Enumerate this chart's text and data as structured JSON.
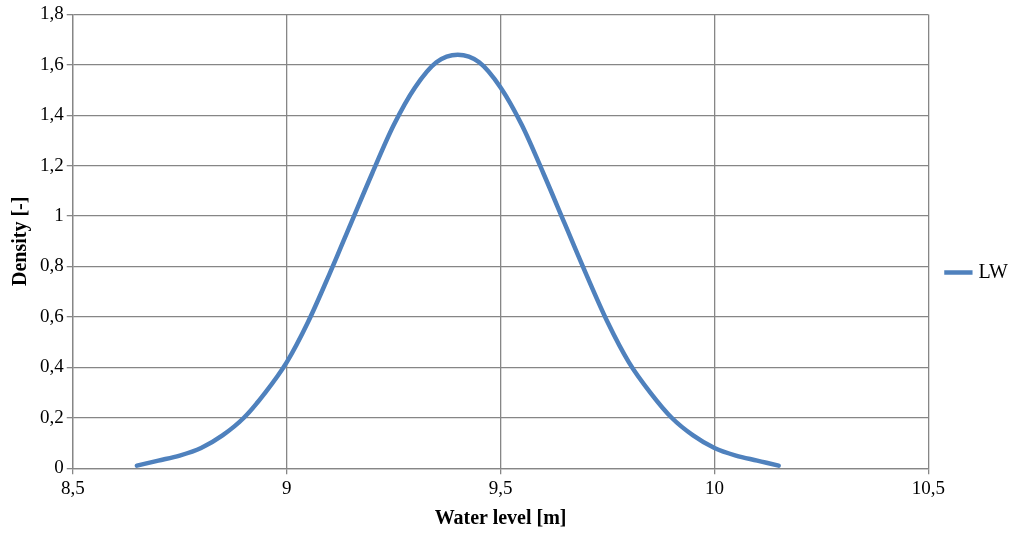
{
  "chart_data": {
    "type": "line",
    "xlabel": "Water level [m]",
    "ylabel": "Density [-]",
    "x": [
      8.65,
      8.7,
      8.75,
      8.8,
      8.85,
      8.9,
      8.95,
      9.0,
      9.05,
      9.1,
      9.15,
      9.2,
      9.25,
      9.3,
      9.35,
      9.4,
      9.45,
      9.5,
      9.55,
      9.6,
      9.65,
      9.7,
      9.75,
      9.8,
      9.85,
      9.9,
      9.95,
      10.0,
      10.05,
      10.1,
      10.15
    ],
    "series": [
      {
        "name": "LW",
        "color": "#4f81bd",
        "values": [
          0.01,
          0.03,
          0.05,
          0.08,
          0.13,
          0.2,
          0.3,
          0.42,
          0.58,
          0.77,
          0.97,
          1.17,
          1.36,
          1.51,
          1.61,
          1.64,
          1.61,
          1.51,
          1.36,
          1.17,
          0.97,
          0.77,
          0.58,
          0.42,
          0.3,
          0.2,
          0.13,
          0.08,
          0.05,
          0.03,
          0.01
        ]
      }
    ],
    "xlim": [
      8.5,
      10.5
    ],
    "xticks": [
      {
        "value": 8.5,
        "label": "8,5"
      },
      9,
      {
        "value": 9.5,
        "label": "9,5"
      },
      10,
      {
        "value": 10.5,
        "label": "10,5"
      }
    ],
    "ylim": [
      0,
      1.8
    ],
    "yticks": [
      0,
      {
        "value": 0.2,
        "label": "0,2"
      },
      {
        "value": 0.4,
        "label": "0,4"
      },
      {
        "value": 0.6,
        "label": "0,6"
      },
      {
        "value": 0.8,
        "label": "0,8"
      },
      1,
      {
        "value": 1.2,
        "label": "1,2"
      },
      {
        "value": 1.4,
        "label": "1,4"
      },
      {
        "value": 1.6,
        "label": "1,6"
      },
      {
        "value": 1.8,
        "label": "1,8"
      }
    ],
    "grid": true,
    "legend": "right",
    "marker": "none",
    "line_style": "solid"
  }
}
